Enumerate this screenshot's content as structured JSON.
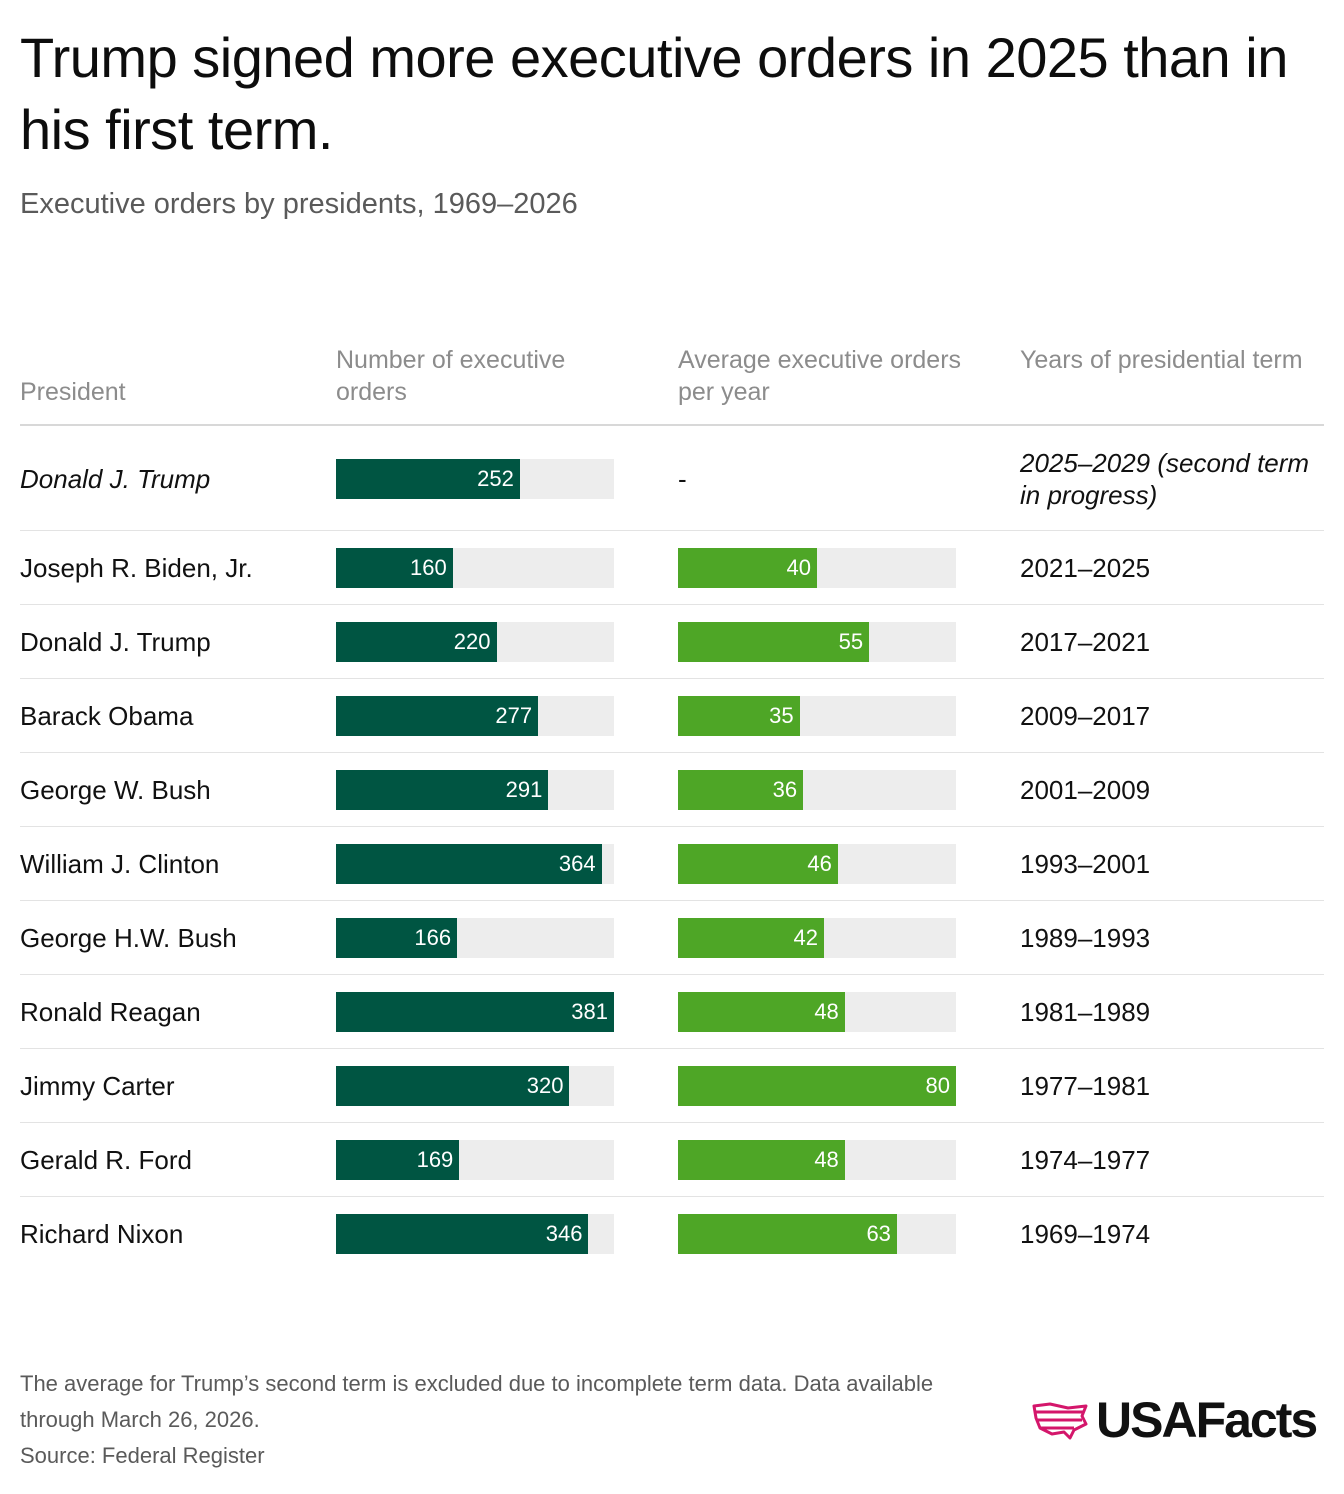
{
  "title": "Trump signed more executive orders in 2025 than in his first term.",
  "subtitle": "Executive orders by presidents, 1969–2026",
  "headers": {
    "president": "President",
    "num": "Number of executive orders",
    "avg": "Average executive orders per year",
    "years": "Years of presidential term"
  },
  "chart_data": {
    "type": "table",
    "columns": [
      "President",
      "Number of executive orders",
      "Average executive orders per year",
      "Years of presidential term"
    ],
    "num_max": 381,
    "avg_max": 80,
    "rows": [
      {
        "president": "Donald J. Trump",
        "num": 252,
        "avg": null,
        "avg_text": "-",
        "years": "2025–2029 (second term in progress)",
        "italic": true
      },
      {
        "president": "Joseph R. Biden, Jr.",
        "num": 160,
        "avg": 40,
        "years": "2021–2025"
      },
      {
        "president": "Donald J. Trump",
        "num": 220,
        "avg": 55,
        "years": "2017–2021"
      },
      {
        "president": "Barack Obama",
        "num": 277,
        "avg": 35,
        "years": "2009–2017"
      },
      {
        "president": "George W. Bush",
        "num": 291,
        "avg": 36,
        "years": "2001–2009"
      },
      {
        "president": "William J. Clinton",
        "num": 364,
        "avg": 46,
        "years": "1993–2001"
      },
      {
        "president": "George H.W. Bush",
        "num": 166,
        "avg": 42,
        "years": "1989–1993"
      },
      {
        "president": "Ronald Reagan",
        "num": 381,
        "avg": 48,
        "years": "1981–1989"
      },
      {
        "president": "Jimmy Carter",
        "num": 320,
        "avg": 80,
        "years": "1977–1981"
      },
      {
        "president": "Gerald R. Ford",
        "num": 169,
        "avg": 48,
        "years": "1974–1977"
      },
      {
        "president": "Richard Nixon",
        "num": 346,
        "avg": 63,
        "years": "1969–1974"
      }
    ]
  },
  "colors": {
    "num_bar": "#005542",
    "avg_bar": "#4ea626",
    "track": "#ededed",
    "logo_accent": "#d4166b"
  },
  "footnote": "The average for Trump’s second term is excluded due to incomplete term data. Data available through March 26, 2026.",
  "source": "Source: Federal Register",
  "logo": {
    "text": "USAFacts",
    "icon": "usa-map-stripes-icon"
  }
}
